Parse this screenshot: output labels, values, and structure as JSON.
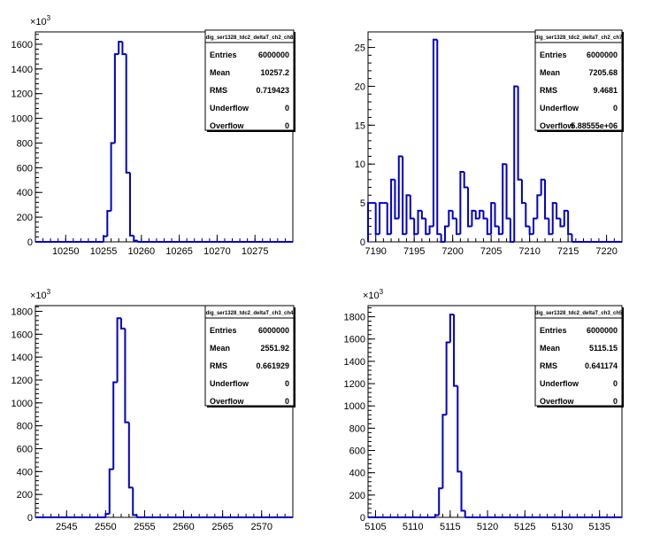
{
  "chart_data": [
    {
      "type": "bar",
      "title": "",
      "xlabel": "",
      "ylabel": "",
      "yexp_label": "10",
      "yexp_power": "3",
      "ylim": [
        0,
        1700000
      ],
      "xlim": [
        10246,
        10280
      ],
      "bin_start": 10255,
      "bin_width": 0.5,
      "values": [
        45000,
        250000,
        800000,
        1520000,
        1620000,
        1520000,
        560000,
        50000,
        10000
      ],
      "yticks": [
        0,
        200000,
        400000,
        600000,
        800000,
        1000000,
        1200000,
        1400000,
        1600000
      ],
      "ytick_labels": [
        "0",
        "200",
        "400",
        "600",
        "800",
        "1000",
        "1200",
        "1400",
        "1600"
      ],
      "xticks": [
        10250,
        10255,
        10260,
        10265,
        10270,
        10275
      ],
      "xtick_labels": [
        "10250",
        "10255",
        "10260",
        "10265",
        "10270",
        "10275"
      ],
      "grid": false,
      "legend": "top-right",
      "stats": {
        "name": "dig_ser1328_tdc2_deltaT_ch2_ch8",
        "rows": [
          {
            "label": "Entries",
            "value": "6000000"
          },
          {
            "label": "Mean",
            "value": "10257.2"
          },
          {
            "label": "RMS",
            "value": "0.719423"
          },
          {
            "label": "Underflow",
            "value": "0"
          },
          {
            "label": "Overflow",
            "value": "0"
          }
        ]
      }
    },
    {
      "type": "bar",
      "title": "",
      "xlabel": "",
      "ylabel": "",
      "yexp_label": "",
      "yexp_power": "",
      "ylim": [
        0,
        27
      ],
      "xlim": [
        7189,
        7222
      ],
      "bin_start": 7189,
      "bin_width": 0.5,
      "values": [
        5,
        5,
        1,
        5,
        5,
        1,
        8,
        3,
        11,
        1,
        6,
        3,
        1,
        4,
        3,
        1,
        2,
        26,
        1,
        0,
        2,
        4,
        3,
        1,
        9,
        7,
        2,
        4,
        3,
        4,
        3,
        1,
        5,
        2,
        1,
        10,
        3,
        0,
        20,
        8,
        5,
        2,
        1,
        3,
        6,
        8,
        3,
        1,
        5,
        3,
        2,
        4,
        1
      ],
      "yticks": [
        0,
        5,
        10,
        15,
        20,
        25
      ],
      "ytick_labels": [
        "0",
        "5",
        "10",
        "15",
        "20",
        "25"
      ],
      "xticks": [
        7190,
        7195,
        7200,
        7205,
        7210,
        7215,
        7220
      ],
      "xtick_labels": [
        "7190",
        "7195",
        "7200",
        "7205",
        "7210",
        "7215",
        "7220"
      ],
      "grid": false,
      "legend": "top-right",
      "stats": {
        "name": "dig_ser1328_tdc2_deltaT_ch2_ch7",
        "rows": [
          {
            "label": "Entries",
            "value": "6000000"
          },
          {
            "label": "Mean",
            "value": "7205.68"
          },
          {
            "label": "RMS",
            "value": "9.4681"
          },
          {
            "label": "Underflow",
            "value": "0"
          },
          {
            "label": "Overflow",
            "value": "5.88555e+06"
          }
        ]
      }
    },
    {
      "type": "bar",
      "title": "",
      "xlabel": "",
      "ylabel": "",
      "yexp_label": "10",
      "yexp_power": "3",
      "ylim": [
        0,
        1850000
      ],
      "xlim": [
        2541,
        2574
      ],
      "bin_start": 2550,
      "bin_width": 0.5,
      "values": [
        30000,
        420000,
        1180000,
        1740000,
        1650000,
        830000,
        260000,
        20000
      ],
      "yticks": [
        0,
        200000,
        400000,
        600000,
        800000,
        1000000,
        1200000,
        1400000,
        1600000,
        1800000
      ],
      "ytick_labels": [
        "0",
        "200",
        "400",
        "600",
        "800",
        "1000",
        "1200",
        "1400",
        "1600",
        "1800"
      ],
      "xticks": [
        2545,
        2550,
        2555,
        2560,
        2565,
        2570
      ],
      "xtick_labels": [
        "2545",
        "2550",
        "2555",
        "2560",
        "2565",
        "2570"
      ],
      "grid": false,
      "legend": "top-right",
      "stats": {
        "name": "dig_ser1328_tdc2_deltaT_ch3_ch4",
        "rows": [
          {
            "label": "Entries",
            "value": "6000000"
          },
          {
            "label": "Mean",
            "value": "2551.92"
          },
          {
            "label": "RMS",
            "value": "0.661929"
          },
          {
            "label": "Underflow",
            "value": "0"
          },
          {
            "label": "Overflow",
            "value": "0"
          }
        ]
      }
    },
    {
      "type": "bar",
      "title": "",
      "xlabel": "",
      "ylabel": "",
      "yexp_label": "10",
      "yexp_power": "3",
      "ylim": [
        0,
        1900000
      ],
      "xlim": [
        5104,
        5138
      ],
      "bin_start": 5113,
      "bin_width": 0.5,
      "values": [
        20000,
        260000,
        920000,
        1570000,
        1820000,
        1180000,
        410000,
        60000
      ],
      "yticks": [
        0,
        200000,
        400000,
        600000,
        800000,
        1000000,
        1200000,
        1400000,
        1600000,
        1800000
      ],
      "ytick_labels": [
        "0",
        "200",
        "400",
        "600",
        "800",
        "1000",
        "1200",
        "1400",
        "1600",
        "1800"
      ],
      "xticks": [
        5105,
        5110,
        5115,
        5120,
        5125,
        5130,
        5135
      ],
      "xtick_labels": [
        "5105",
        "5110",
        "5115",
        "5120",
        "5125",
        "5130",
        "5135"
      ],
      "grid": false,
      "legend": "top-right",
      "stats": {
        "name": "dig_ser1328_tdc2_deltaT_ch3_ch5",
        "rows": [
          {
            "label": "Entries",
            "value": "6000000"
          },
          {
            "label": "Mean",
            "value": "5115.15"
          },
          {
            "label": "RMS",
            "value": "0.641174"
          },
          {
            "label": "Underflow",
            "value": "0"
          },
          {
            "label": "Overflow",
            "value": "0"
          }
        ]
      }
    }
  ],
  "colors": {
    "histogram_line": "#0000cc",
    "axis": "#000000",
    "background": "#ffffff"
  }
}
